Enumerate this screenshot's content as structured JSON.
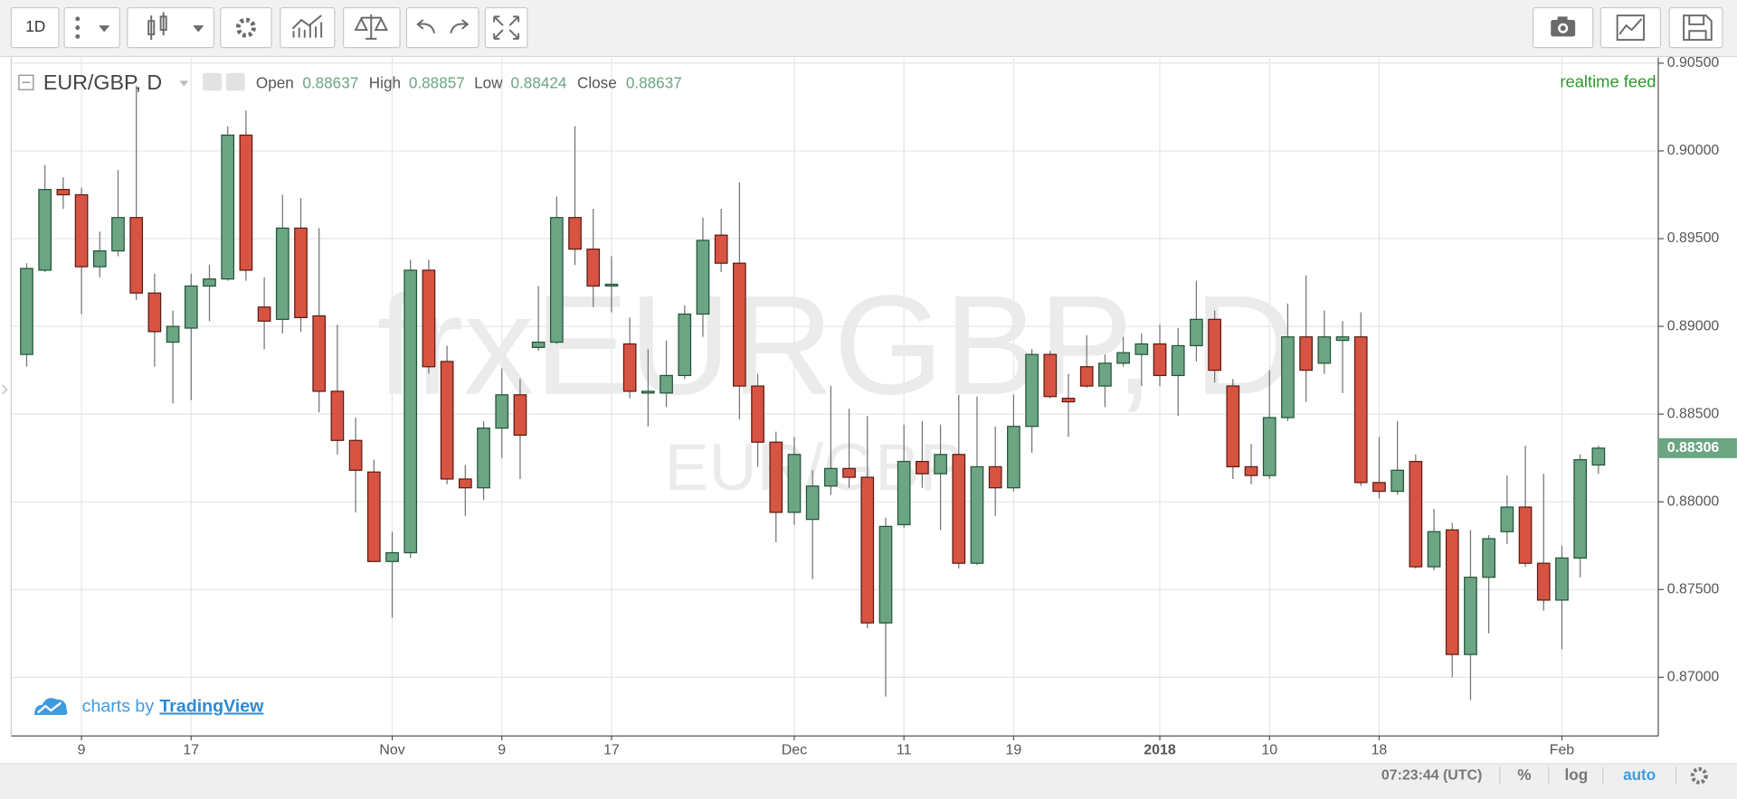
{
  "toolbar": {
    "interval": "1D"
  },
  "chart_data": {
    "type": "candlestick",
    "legend": {
      "symbol": "EUR/GBP, D",
      "fields": [
        {
          "label": "Open",
          "value": 0.88637
        },
        {
          "label": "High",
          "value": 0.88857
        },
        {
          "label": "Low",
          "value": 0.88424
        },
        {
          "label": "Close",
          "value": 0.88637
        }
      ]
    },
    "feed": "realtime feed",
    "watermark": {
      "symbol": "frxEURGBP, D",
      "name": "EUR/GBP"
    },
    "categories": [
      null,
      null,
      null,
      "9",
      null,
      null,
      null,
      null,
      null,
      "17",
      null,
      null,
      null,
      null,
      null,
      null,
      null,
      null,
      null,
      null,
      "Nov",
      null,
      null,
      null,
      null,
      null,
      "9",
      null,
      null,
      null,
      null,
      null,
      "17",
      null,
      null,
      null,
      null,
      null,
      null,
      null,
      null,
      null,
      "Dec",
      null,
      null,
      null,
      null,
      null,
      "11",
      null,
      null,
      null,
      null,
      null,
      "19",
      null,
      null,
      null,
      null,
      null,
      null,
      null,
      "2018",
      null,
      null,
      null,
      null,
      null,
      "10",
      null,
      null,
      null,
      null,
      null,
      "18",
      null,
      null,
      null,
      null,
      null,
      null,
      null,
      null,
      null,
      "Feb",
      null,
      null
    ],
    "open": [
      0.8884,
      0.8932,
      0.8978,
      0.8975,
      0.8934,
      0.8943,
      0.8962,
      0.8919,
      0.8891,
      0.8899,
      0.8923,
      0.8927,
      0.9009,
      0.8911,
      0.8904,
      0.8956,
      0.8906,
      0.8863,
      0.8835,
      0.8817,
      0.8766,
      0.8771,
      0.8932,
      0.888,
      0.8813,
      0.8808,
      0.8842,
      0.8861,
      0.8888,
      0.8891,
      0.8962,
      0.8944,
      0.8923,
      0.889,
      0.8862,
      0.8862,
      0.8872,
      0.8907,
      0.8952,
      0.8936,
      0.8866,
      0.8834,
      0.8794,
      0.879,
      0.8809,
      0.8819,
      0.8814,
      0.8731,
      0.8787,
      0.8823,
      0.8816,
      0.8827,
      0.8765,
      0.882,
      0.8808,
      0.8843,
      0.8884,
      0.8859,
      0.8877,
      0.8866,
      0.8879,
      0.8884,
      0.889,
      0.8872,
      0.8889,
      0.8904,
      0.8866,
      0.882,
      0.8815,
      0.8848,
      0.8894,
      0.8879,
      0.8892,
      0.8894,
      0.8811,
      0.8806,
      0.8823,
      0.8763,
      0.8784,
      0.8713,
      0.8757,
      0.8783,
      0.8797,
      0.8765,
      0.8744,
      0.8768,
      0.8821
    ],
    "high": [
      0.8936,
      0.8992,
      0.8985,
      0.8979,
      0.8954,
      0.8989,
      0.9037,
      0.893,
      0.8909,
      0.893,
      0.8935,
      0.9014,
      0.9023,
      0.8928,
      0.8975,
      0.8973,
      0.8956,
      0.8901,
      0.8848,
      0.8824,
      0.8783,
      0.8938,
      0.8938,
      0.8889,
      0.8821,
      0.8846,
      0.8876,
      0.887,
      0.8923,
      0.8974,
      0.9014,
      0.8967,
      0.894,
      0.8905,
      0.8887,
      0.8892,
      0.8912,
      0.8962,
      0.8967,
      0.8982,
      0.8873,
      0.884,
      0.8837,
      0.8818,
      0.8866,
      0.8853,
      0.8849,
      0.8791,
      0.8844,
      0.8846,
      0.8844,
      0.8861,
      0.886,
      0.8843,
      0.8861,
      0.8887,
      0.8886,
      0.8873,
      0.8895,
      0.8884,
      0.8894,
      0.8896,
      0.8901,
      0.8899,
      0.8926,
      0.8909,
      0.887,
      0.8833,
      0.8875,
      0.8913,
      0.8929,
      0.8909,
      0.8903,
      0.8908,
      0.8837,
      0.8846,
      0.8827,
      0.8796,
      0.8788,
      0.8784,
      0.8781,
      0.8815,
      0.8832,
      0.8816,
      0.8775,
      0.8827,
      0.8832
    ],
    "low": [
      0.8877,
      0.8931,
      0.8967,
      0.8907,
      0.8928,
      0.894,
      0.8915,
      0.8877,
      0.8856,
      0.8858,
      0.8903,
      0.8926,
      0.8926,
      0.8887,
      0.8896,
      0.8897,
      0.8851,
      0.8827,
      0.8794,
      0.8766,
      0.8734,
      0.8768,
      0.8873,
      0.881,
      0.8792,
      0.8801,
      0.8825,
      0.8813,
      0.8886,
      0.889,
      0.8935,
      0.8911,
      0.8908,
      0.8859,
      0.8843,
      0.8854,
      0.887,
      0.8894,
      0.8931,
      0.8847,
      0.882,
      0.8777,
      0.8787,
      0.8756,
      0.8804,
      0.8808,
      0.8728,
      0.8689,
      0.8785,
      0.8808,
      0.8784,
      0.8762,
      0.8764,
      0.8792,
      0.8806,
      0.8828,
      0.8859,
      0.8837,
      0.8865,
      0.8854,
      0.8877,
      0.8866,
      0.8866,
      0.8849,
      0.888,
      0.8868,
      0.8813,
      0.881,
      0.8813,
      0.8846,
      0.8857,
      0.8873,
      0.8862,
      0.8809,
      0.8802,
      0.8804,
      0.8762,
      0.8761,
      0.87,
      0.8687,
      0.8725,
      0.8776,
      0.8763,
      0.8738,
      0.8716,
      0.8757,
      0.8816
    ],
    "close": [
      0.8933,
      0.8978,
      0.8975,
      0.8934,
      0.8943,
      0.8962,
      0.8919,
      0.8897,
      0.89,
      0.8923,
      0.8927,
      0.9009,
      0.8932,
      0.8903,
      0.8956,
      0.8905,
      0.8863,
      0.8835,
      0.8818,
      0.8766,
      0.8771,
      0.8932,
      0.8877,
      0.8813,
      0.8808,
      0.8842,
      0.8861,
      0.8838,
      0.8891,
      0.8962,
      0.8944,
      0.8923,
      0.8924,
      0.8863,
      0.8863,
      0.8872,
      0.8907,
      0.8949,
      0.8936,
      0.8866,
      0.8834,
      0.8794,
      0.8827,
      0.8809,
      0.8819,
      0.8814,
      0.8731,
      0.8786,
      0.8823,
      0.8816,
      0.8827,
      0.8765,
      0.882,
      0.8808,
      0.8843,
      0.8884,
      0.886,
      0.8857,
      0.8866,
      0.8879,
      0.8885,
      0.889,
      0.8872,
      0.8889,
      0.8904,
      0.8875,
      0.882,
      0.8815,
      0.8848,
      0.8894,
      0.8875,
      0.8894,
      0.8894,
      0.8811,
      0.8806,
      0.8818,
      0.8763,
      0.8783,
      0.8713,
      0.8757,
      0.8779,
      0.8797,
      0.8765,
      0.8744,
      0.8768,
      0.8824,
      0.88306
    ],
    "up_color": "#6ba583",
    "down_color": "#d75442",
    "last_price": 0.88306,
    "ylim": [
      0.86666,
      0.90532
    ],
    "yticks": [
      {
        "value": 0.87,
        "label": "0.87000"
      },
      {
        "value": 0.875,
        "label": "0.87500"
      },
      {
        "value": 0.88,
        "label": "0.88000"
      },
      {
        "value": 0.885,
        "label": "0.88500"
      },
      {
        "value": 0.89,
        "label": "0.89000"
      },
      {
        "value": 0.895,
        "label": "0.89500"
      },
      {
        "value": 0.9,
        "label": "0.90000"
      },
      {
        "value": 0.905,
        "label": "0.90500"
      }
    ],
    "grid": true
  },
  "branding": {
    "prefix": "charts by",
    "name": "TradingView"
  },
  "footer": {
    "time": "07:23:44 (UTC)",
    "percent": "%",
    "log": "log",
    "auto": "auto"
  }
}
